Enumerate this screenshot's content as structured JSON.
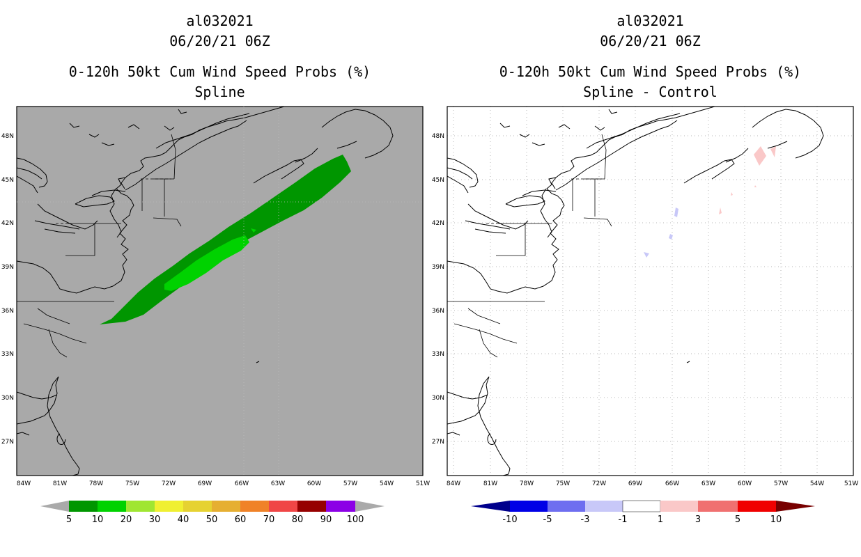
{
  "panels": [
    {
      "storm_id": "al032021",
      "datetime": "06/20/21 06Z",
      "product": "0-120h 50kt Cum Wind Speed Probs (%)",
      "subtitle": "Spline",
      "background_color": "#a9a9a9"
    },
    {
      "storm_id": "al032021",
      "datetime": "06/20/21 06Z",
      "product": "0-120h 50kt Cum Wind Speed Probs (%)",
      "subtitle": "Spline - Control",
      "background_color": "#ffffff"
    }
  ],
  "axes": {
    "lon_labels": [
      "84W",
      "81W",
      "78W",
      "75W",
      "72W",
      "69W",
      "66W",
      "63W",
      "60W",
      "57W",
      "54W",
      "51W"
    ],
    "lat_labels": [
      "48N",
      "45N",
      "42N",
      "39N",
      "36N",
      "33N",
      "30N",
      "27N"
    ]
  },
  "legend_left": {
    "labels": [
      "5",
      "10",
      "20",
      "30",
      "40",
      "50",
      "60",
      "70",
      "80",
      "90",
      "100"
    ],
    "colors": [
      "#009600",
      "#00d200",
      "#a0e632",
      "#f0f032",
      "#e6d232",
      "#e6af32",
      "#f08228",
      "#f04646",
      "#960000",
      "#8c00e6"
    ],
    "end_color": "#aaaaaa"
  },
  "legend_right": {
    "labels": [
      "-10",
      "-5",
      "-3",
      "-1",
      "1",
      "3",
      "5",
      "10"
    ],
    "colors": [
      "#0000e6",
      "#6e6ef0",
      "#c8c8f8",
      "#ffffff",
      "#fac8c8",
      "#f07070",
      "#f00000"
    ],
    "low_end_color": "#00008c",
    "high_end_color": "#780000"
  }
}
